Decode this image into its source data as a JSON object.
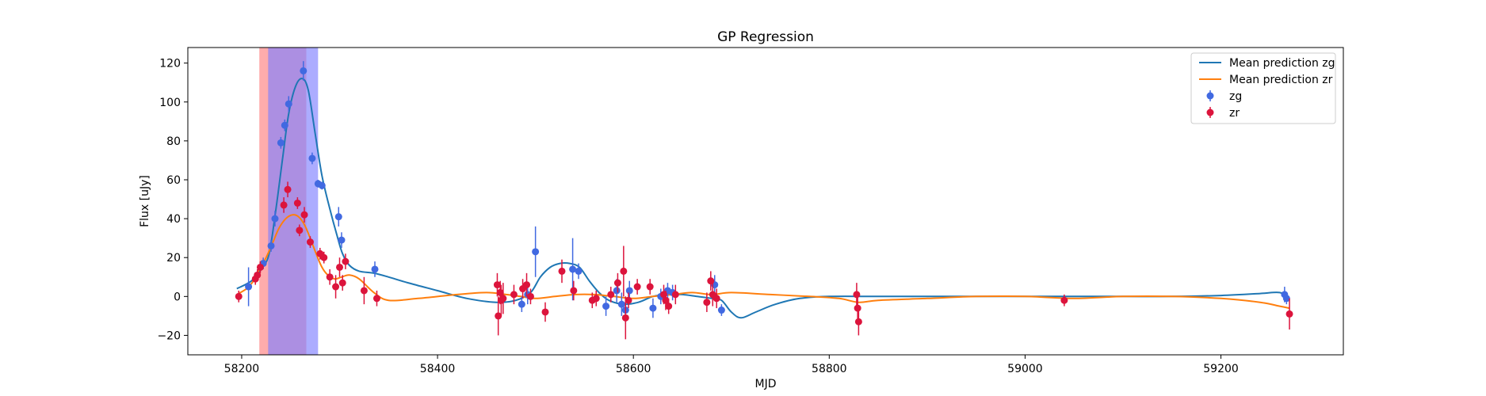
{
  "chart_data": {
    "type": "scatter",
    "title": "GP Regression",
    "xlabel": "MJD",
    "ylabel": "Flux [uJy]",
    "xlim": [
      58145,
      59325
    ],
    "ylim": [
      -30,
      128
    ],
    "xticks": [
      58200,
      58400,
      58600,
      58800,
      59000,
      59200
    ],
    "yticks": [
      -20,
      0,
      20,
      40,
      60,
      80,
      100,
      120
    ],
    "grid": false,
    "legend_position": "top-right",
    "shaded_regions": [
      {
        "x0": 58218,
        "x1": 58266,
        "color": "#ff7f7f",
        "opacity": 0.65
      },
      {
        "x0": 58227,
        "x1": 58278,
        "color": "#7f7fff",
        "opacity": 0.65
      }
    ],
    "lines": [
      {
        "name": "Mean prediction zg",
        "color": "#1f77b4",
        "x": [
          58195,
          58210,
          58220,
          58228,
          58235,
          58242,
          58248,
          58255,
          58262,
          58268,
          58275,
          58282,
          58290,
          58297,
          58303,
          58310,
          58320,
          58335,
          58350,
          58370,
          58400,
          58430,
          58460,
          58480,
          58495,
          58505,
          58515,
          58525,
          58535,
          58545,
          58555,
          58565,
          58575,
          58590,
          58605,
          58620,
          58635,
          58650,
          58665,
          58680,
          58690,
          58700,
          58710,
          58725,
          58745,
          58770,
          58800,
          58850,
          58900,
          58950,
          59000,
          59050,
          59100,
          59150,
          59200,
          59240,
          59260,
          59270
        ],
        "y": [
          4,
          8,
          14,
          22,
          45,
          72,
          94,
          108,
          112,
          106,
          84,
          62,
          45,
          32,
          22,
          16,
          13,
          12,
          10,
          7,
          3,
          -1,
          -3,
          -2,
          2,
          10,
          15,
          17,
          17,
          15,
          8,
          2,
          -2,
          -4,
          -3,
          0,
          1,
          1,
          0,
          -1,
          -2,
          -8,
          -11,
          -8,
          -4,
          -1,
          0,
          0,
          0,
          0,
          0,
          0,
          0,
          0,
          0.5,
          1.5,
          2,
          -1
        ]
      },
      {
        "name": "Mean prediction zr",
        "color": "#ff7f0e",
        "x": [
          58195,
          58205,
          58212,
          58218,
          58225,
          58232,
          58238,
          58245,
          58252,
          58258,
          58264,
          58270,
          58276,
          58282,
          58288,
          58295,
          58302,
          58310,
          58320,
          58335,
          58350,
          58380,
          58420,
          58450,
          58470,
          58485,
          58500,
          58520,
          58540,
          58560,
          58580,
          58600,
          58620,
          58640,
          58660,
          58680,
          58700,
          58740,
          58780,
          58810,
          58830,
          58850,
          58900,
          58950,
          59000,
          59050,
          59100,
          59150,
          59200,
          59240,
          59260,
          59270
        ],
        "y": [
          1,
          4,
          8,
          14,
          20,
          28,
          35,
          40,
          42,
          41,
          37,
          30,
          22,
          15,
          11,
          9,
          10,
          11,
          9,
          2,
          -2,
          -1,
          1,
          2,
          1,
          0,
          -1,
          0,
          1,
          1,
          0,
          -1,
          0,
          1,
          2,
          1,
          2,
          1,
          0,
          -1,
          -3,
          -2,
          -1,
          0,
          0,
          -1,
          0,
          0,
          -1,
          -3,
          -5,
          -6
        ]
      }
    ],
    "series": [
      {
        "name": "zg",
        "color": "#4169e1",
        "points": [
          {
            "x": 58207,
            "y": 5,
            "err": 10
          },
          {
            "x": 58222,
            "y": 17,
            "err": 3
          },
          {
            "x": 58230,
            "y": 26,
            "err": 3
          },
          {
            "x": 58234,
            "y": 40,
            "err": 4
          },
          {
            "x": 58240,
            "y": 79,
            "err": 3
          },
          {
            "x": 58244,
            "y": 88,
            "err": 3
          },
          {
            "x": 58248,
            "y": 99,
            "err": 4
          },
          {
            "x": 58263,
            "y": 116,
            "err": 5
          },
          {
            "x": 58272,
            "y": 71,
            "err": 3
          },
          {
            "x": 58278,
            "y": 58,
            "err": 2
          },
          {
            "x": 58282,
            "y": 57,
            "err": 2
          },
          {
            "x": 58299,
            "y": 41,
            "err": 5
          },
          {
            "x": 58302,
            "y": 29,
            "err": 4
          },
          {
            "x": 58336,
            "y": 14,
            "err": 4
          },
          {
            "x": 58486,
            "y": -4,
            "err": 4
          },
          {
            "x": 58492,
            "y": 1,
            "err": 5
          },
          {
            "x": 58500,
            "y": 23,
            "err": 13
          },
          {
            "x": 58538,
            "y": 14,
            "err": 16
          },
          {
            "x": 58544,
            "y": 13,
            "err": 4
          },
          {
            "x": 58572,
            "y": -5,
            "err": 5
          },
          {
            "x": 58583,
            "y": 3,
            "err": 6
          },
          {
            "x": 58588,
            "y": -4,
            "err": 6
          },
          {
            "x": 58592,
            "y": -7,
            "err": 7
          },
          {
            "x": 58596,
            "y": 3,
            "err": 5
          },
          {
            "x": 58620,
            "y": -6,
            "err": 5
          },
          {
            "x": 58628,
            "y": 0,
            "err": 4
          },
          {
            "x": 58635,
            "y": 3,
            "err": 4
          },
          {
            "x": 58640,
            "y": 2,
            "err": 4
          },
          {
            "x": 58683,
            "y": 6,
            "err": 5
          },
          {
            "x": 58690,
            "y": -7,
            "err": 3
          },
          {
            "x": 59265,
            "y": 1,
            "err": 4
          },
          {
            "x": 59267,
            "y": -1,
            "err": 3
          }
        ]
      },
      {
        "name": "zr",
        "color": "#dc143c",
        "points": [
          {
            "x": 58197,
            "y": 0,
            "err": 3
          },
          {
            "x": 58214,
            "y": 9,
            "err": 3
          },
          {
            "x": 58216,
            "y": 11,
            "err": 3
          },
          {
            "x": 58219,
            "y": 15,
            "err": 3
          },
          {
            "x": 58243,
            "y": 47,
            "err": 4
          },
          {
            "x": 58247,
            "y": 55,
            "err": 4
          },
          {
            "x": 58257,
            "y": 48,
            "err": 3
          },
          {
            "x": 58259,
            "y": 34,
            "err": 3
          },
          {
            "x": 58264,
            "y": 42,
            "err": 4
          },
          {
            "x": 58270,
            "y": 28,
            "err": 3
          },
          {
            "x": 58280,
            "y": 22,
            "err": 3
          },
          {
            "x": 58284,
            "y": 20,
            "err": 3
          },
          {
            "x": 58290,
            "y": 10,
            "err": 4
          },
          {
            "x": 58296,
            "y": 5,
            "err": 6
          },
          {
            "x": 58300,
            "y": 15,
            "err": 5
          },
          {
            "x": 58303,
            "y": 7,
            "err": 4
          },
          {
            "x": 58306,
            "y": 18,
            "err": 4
          },
          {
            "x": 58325,
            "y": 3,
            "err": 7
          },
          {
            "x": 58338,
            "y": -1,
            "err": 4
          },
          {
            "x": 58461,
            "y": 6,
            "err": 6
          },
          {
            "x": 58462,
            "y": -10,
            "err": 10
          },
          {
            "x": 58464,
            "y": 2,
            "err": 6
          },
          {
            "x": 58465,
            "y": -2,
            "err": 8
          },
          {
            "x": 58467,
            "y": -1,
            "err": 8
          },
          {
            "x": 58478,
            "y": 1,
            "err": 5
          },
          {
            "x": 58487,
            "y": 4,
            "err": 5
          },
          {
            "x": 58491,
            "y": 6,
            "err": 6
          },
          {
            "x": 58495,
            "y": 0,
            "err": 4
          },
          {
            "x": 58510,
            "y": -8,
            "err": 5
          },
          {
            "x": 58527,
            "y": 13,
            "err": 6
          },
          {
            "x": 58539,
            "y": 3,
            "err": 5
          },
          {
            "x": 58558,
            "y": -2,
            "err": 4
          },
          {
            "x": 58562,
            "y": -1,
            "err": 4
          },
          {
            "x": 58577,
            "y": 1,
            "err": 4
          },
          {
            "x": 58584,
            "y": 7,
            "err": 5
          },
          {
            "x": 58590,
            "y": 13,
            "err": 13
          },
          {
            "x": 58592,
            "y": -11,
            "err": 11
          },
          {
            "x": 58595,
            "y": -2,
            "err": 4
          },
          {
            "x": 58604,
            "y": 5,
            "err": 4
          },
          {
            "x": 58617,
            "y": 5,
            "err": 4
          },
          {
            "x": 58631,
            "y": 1,
            "err": 5
          },
          {
            "x": 58633,
            "y": -2,
            "err": 5
          },
          {
            "x": 58636,
            "y": -5,
            "err": 4
          },
          {
            "x": 58643,
            "y": 1,
            "err": 5
          },
          {
            "x": 58675,
            "y": -3,
            "err": 5
          },
          {
            "x": 58679,
            "y": 8,
            "err": 5
          },
          {
            "x": 58681,
            "y": 1,
            "err": 6
          },
          {
            "x": 58685,
            "y": -1,
            "err": 5
          },
          {
            "x": 58828,
            "y": 1,
            "err": 6
          },
          {
            "x": 58829,
            "y": -6,
            "err": 6
          },
          {
            "x": 58830,
            "y": -13,
            "err": 7
          },
          {
            "x": 59040,
            "y": -2,
            "err": 3
          },
          {
            "x": 59270,
            "y": -9,
            "err": 8
          }
        ]
      }
    ]
  }
}
